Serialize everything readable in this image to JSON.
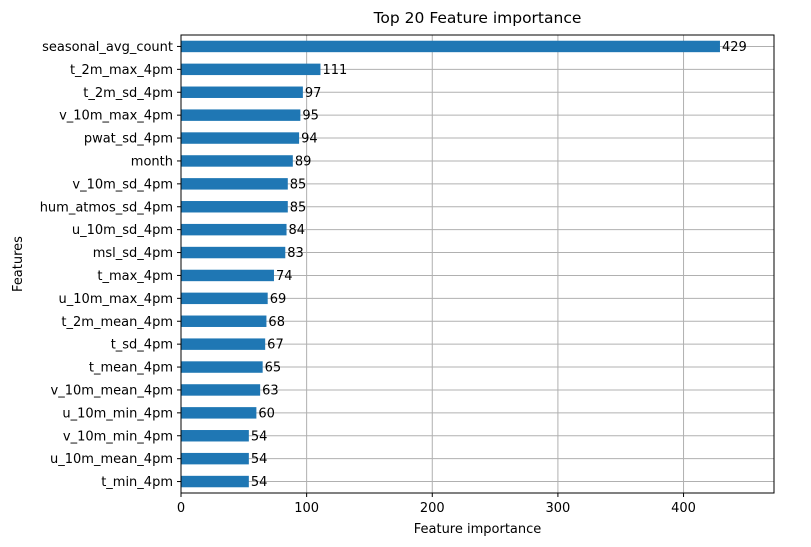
{
  "chart_data": {
    "type": "bar",
    "orientation": "horizontal",
    "title": "Top 20 Feature importance",
    "xlabel": "Feature importance",
    "ylabel": "Features",
    "xlim": [
      0,
      472
    ],
    "xticks": [
      0,
      100,
      200,
      300,
      400
    ],
    "grid": true,
    "bar_color": "#1f77b4",
    "categories": [
      "seasonal_avg_count",
      "t_2m_max_4pm",
      "t_2m_sd_4pm",
      "v_10m_max_4pm",
      "pwat_sd_4pm",
      "month",
      "v_10m_sd_4pm",
      "hum_atmos_sd_4pm",
      "u_10m_sd_4pm",
      "msl_sd_4pm",
      "t_max_4pm",
      "u_10m_max_4pm",
      "t_2m_mean_4pm",
      "t_sd_4pm",
      "t_mean_4pm",
      "v_10m_mean_4pm",
      "u_10m_min_4pm",
      "v_10m_min_4pm",
      "u_10m_mean_4pm",
      "t_min_4pm"
    ],
    "values": [
      429,
      111,
      97,
      95,
      94,
      89,
      85,
      85,
      84,
      83,
      74,
      69,
      68,
      67,
      65,
      63,
      60,
      54,
      54,
      54
    ]
  }
}
